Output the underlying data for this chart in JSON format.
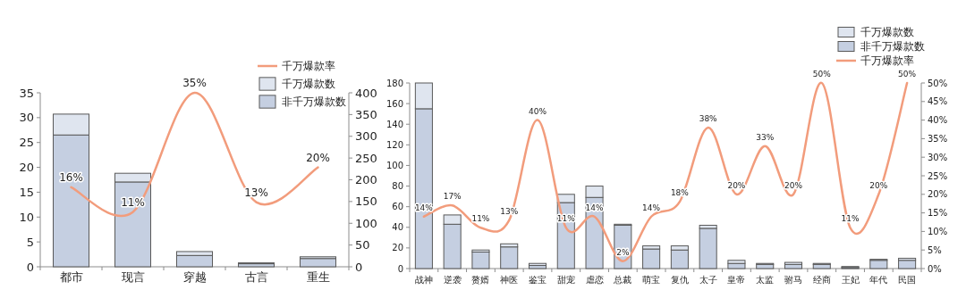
{
  "chart_data": [
    {
      "type": "bar",
      "stacked": true,
      "legend": "top right",
      "categories": [
        "都市",
        "现言",
        "穿越",
        "古言",
        "重生"
      ],
      "series": [
        {
          "name": "千万爆款率",
          "type": "line",
          "axis": "y",
          "color": "#f29c7c",
          "values": [
            16,
            11,
            35,
            13,
            20
          ],
          "value_labels": [
            "16%",
            "11%",
            "35%",
            "13%",
            "20%"
          ]
        },
        {
          "name": "非千万爆款数",
          "axis": "y2",
          "color": "#c5cfe1",
          "values": [
            303,
            195,
            26,
            7,
            19
          ]
        },
        {
          "name": "千万爆款数",
          "axis": "y2",
          "color": "#dfe5ef",
          "values": [
            48,
            20,
            9,
            2,
            4
          ]
        }
      ],
      "ylim": [
        0,
        35
      ],
      "yticks": [
        0,
        5,
        10,
        15,
        20,
        25,
        30,
        35
      ],
      "y2lim": [
        0,
        400
      ],
      "y2ticks": [
        0,
        50,
        100,
        150,
        200,
        250,
        300,
        350,
        400
      ]
    },
    {
      "type": "bar",
      "stacked": true,
      "legend": "top right",
      "categories": [
        "战神",
        "逆袭",
        "赘婿",
        "神医",
        "鉴宝",
        "甜宠",
        "虐恋",
        "总裁",
        "萌宝",
        "复仇",
        "太子",
        "皇帝",
        "太监",
        "驸马",
        "经商",
        "王妃",
        "年代",
        "民国"
      ],
      "series": [
        {
          "name": "非千万爆款数",
          "axis": "y",
          "color": "#c5cfe1",
          "values": [
            155,
            43,
            16,
            21,
            3,
            64,
            69,
            42,
            19,
            18,
            39,
            5,
            4,
            4,
            4,
            1,
            8,
            8
          ]
        },
        {
          "name": "千万爆款数",
          "axis": "y",
          "color": "#dfe5ef",
          "values": [
            25,
            9,
            2,
            3,
            2,
            8,
            11,
            1,
            3,
            4,
            3,
            3,
            1,
            2,
            1,
            1,
            1,
            2
          ]
        },
        {
          "name": "千万爆款率",
          "type": "line",
          "axis": "y2",
          "color": "#f29c7c",
          "values": [
            14,
            17,
            11,
            13,
            40,
            11,
            14,
            2,
            14,
            18,
            38,
            20,
            33,
            20,
            50,
            11,
            20,
            50
          ],
          "value_labels": [
            "14%",
            "17%",
            "11%",
            "13%",
            "40%",
            "11%",
            "14%",
            "2%",
            "14%",
            "18%",
            "38%",
            "20%",
            "33%",
            "20%",
            "50%",
            "11%",
            "20%",
            "50%"
          ]
        }
      ],
      "ylim": [
        0,
        180
      ],
      "yticks": [
        0,
        20,
        40,
        60,
        80,
        100,
        120,
        140,
        160,
        180
      ],
      "y2lim": [
        0,
        50
      ],
      "y2ticks": [
        {
          "value": 0,
          "label": "0%"
        },
        {
          "value": 5,
          "label": "5%"
        },
        {
          "value": 10,
          "label": "10%"
        },
        {
          "value": 15,
          "label": "15%"
        },
        {
          "value": 20,
          "label": "20%"
        },
        {
          "value": 25,
          "label": "25%"
        },
        {
          "value": 30,
          "label": "30%"
        },
        {
          "value": 35,
          "label": "35%"
        },
        {
          "value": 40,
          "label": "40%"
        },
        {
          "value": 45,
          "label": "45%"
        },
        {
          "value": 50,
          "label": "50%"
        }
      ]
    }
  ]
}
